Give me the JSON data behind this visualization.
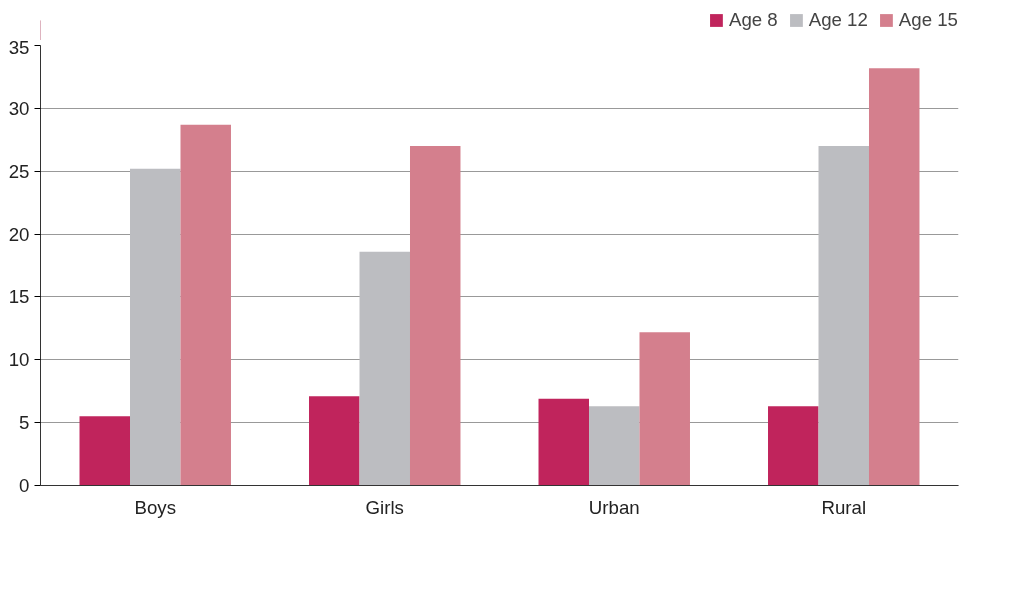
{
  "chart_data": {
    "type": "bar",
    "categories": [
      "Boys",
      "Girls",
      "Urban",
      "Rural"
    ],
    "series": [
      {
        "name": "Age 8",
        "color": "#c0245c",
        "values": [
          5.5,
          7.1,
          6.9,
          6.3
        ]
      },
      {
        "name": "Age 12",
        "color": "#bcbdc1",
        "values": [
          25.2,
          18.6,
          6.3,
          27.0
        ]
      },
      {
        "name": "Age 15",
        "color": "#d47f8d",
        "values": [
          28.7,
          27.0,
          12.2,
          33.2
        ]
      }
    ],
    "ylim": [
      0,
      35
    ],
    "yticks": [
      0,
      5,
      10,
      15,
      20,
      25,
      30,
      35
    ],
    "grid": "y",
    "legend": "top right"
  }
}
